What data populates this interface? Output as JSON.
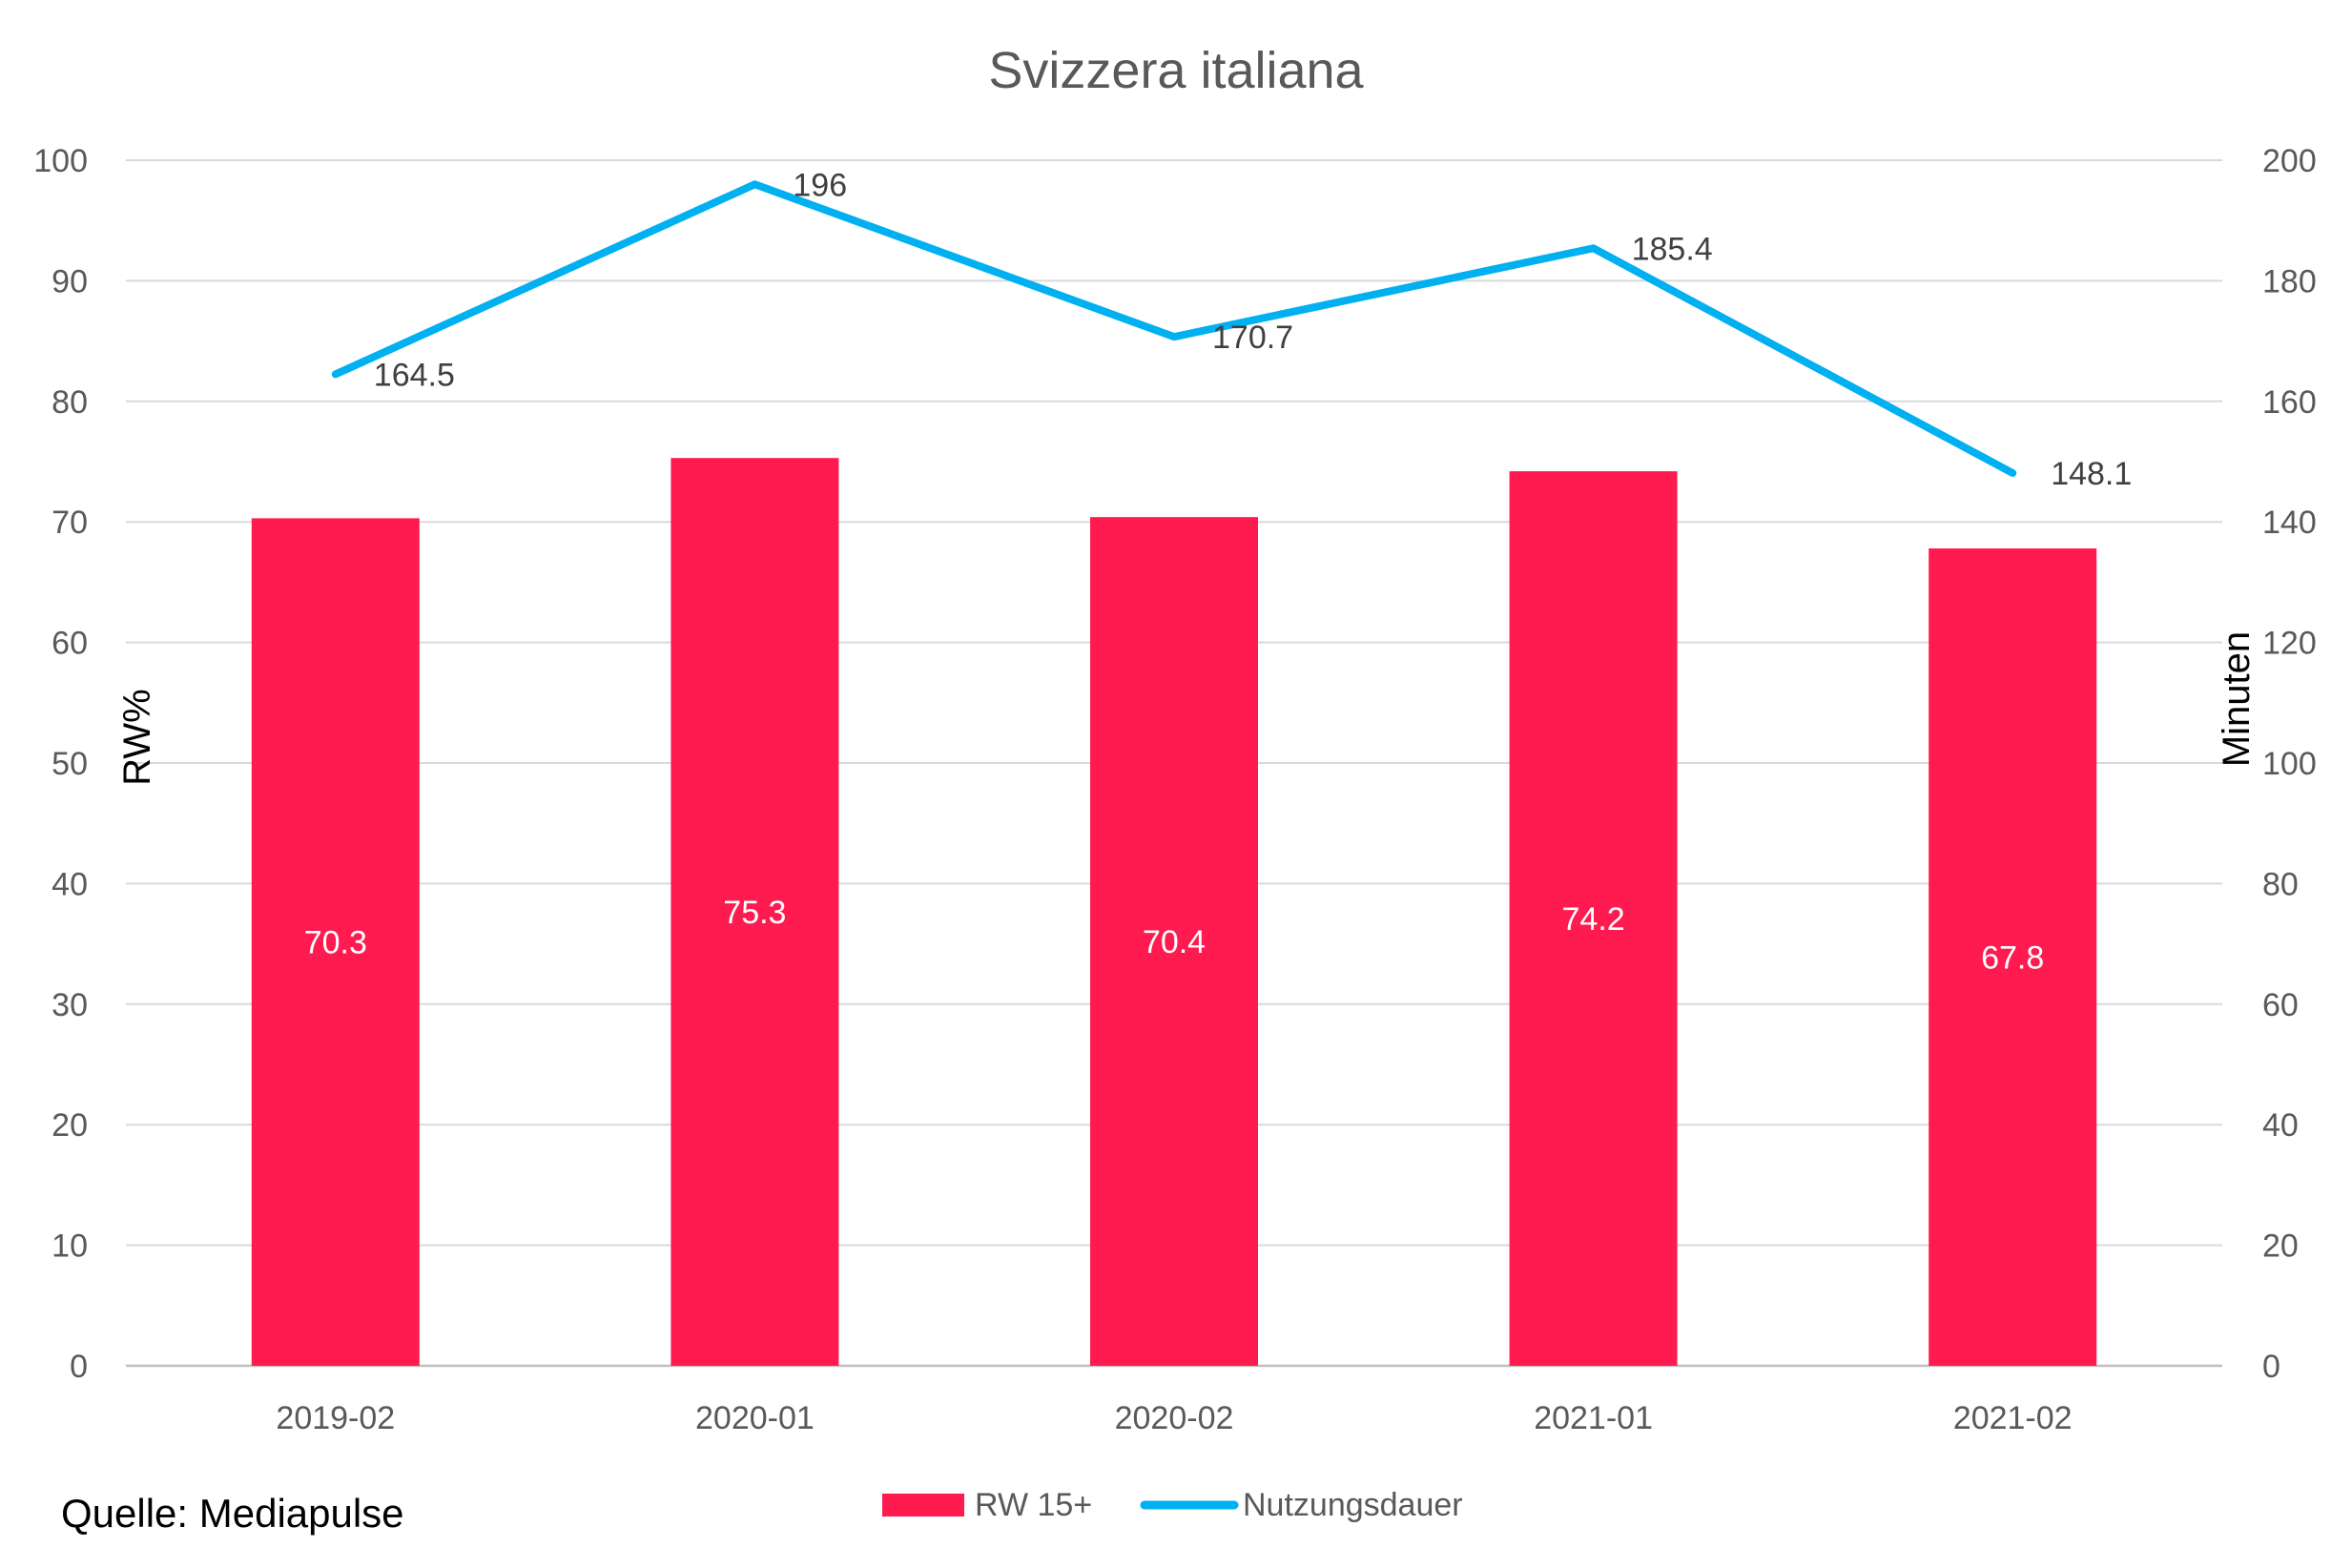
{
  "chart_data": {
    "type": "bar",
    "title": "Svizzera italiana",
    "categories": [
      "2019-02",
      "2020-01",
      "2020-02",
      "2021-01",
      "2021-02"
    ],
    "ylabel": "RW%",
    "ylabel_right": "Minuten",
    "ylim": [
      0,
      100
    ],
    "ylim_right": [
      0,
      200
    ],
    "yticks": [
      "0",
      "10",
      "20",
      "30",
      "40",
      "50",
      "60",
      "70",
      "80",
      "90",
      "100"
    ],
    "yticks_right": [
      "0",
      "20",
      "40",
      "60",
      "80",
      "100",
      "120",
      "140",
      "160",
      "180",
      "200"
    ],
    "grid": true,
    "legend_position": "bottom",
    "series": [
      {
        "name": "RW 15+",
        "type": "bar",
        "axis": "left",
        "color": "#FF1A4F",
        "values": [
          70.3,
          75.3,
          70.4,
          74.2,
          67.8
        ],
        "labels": [
          "70.3",
          "75.3",
          "70.4",
          "74.2",
          "67.8"
        ]
      },
      {
        "name": "Nutzungsdauer",
        "type": "line",
        "axis": "right",
        "color": "#00B0F0",
        "values": [
          164.5,
          196,
          170.7,
          185.4,
          148.1
        ],
        "labels": [
          "164.5",
          "196",
          "170.7",
          "185.4",
          "148.1"
        ]
      }
    ]
  },
  "source_note": "Quelle: Mediapulse"
}
